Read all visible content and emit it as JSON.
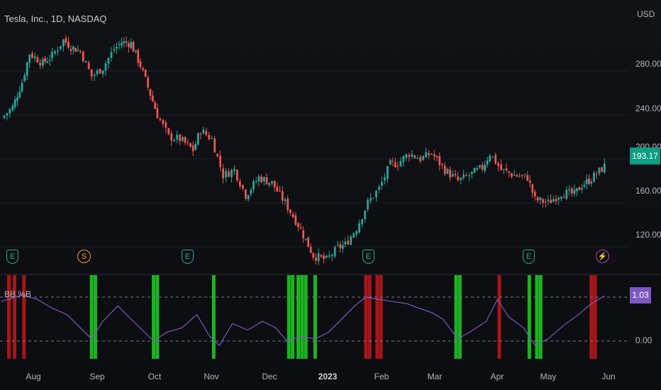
{
  "header": {
    "title": "Tesla, Inc., 1D, NASDAQ",
    "currency": "USD"
  },
  "price_axis": {
    "ticks": [
      "280.00",
      "240.00",
      "200.00",
      "160.00",
      "120.00"
    ],
    "last_price": "193.17"
  },
  "indicator": {
    "title": "BB %B",
    "last_value": "1.03",
    "ticks": [
      "0.00"
    ]
  },
  "time_axis": {
    "labels": [
      "Aug",
      "Sep",
      "Oct",
      "Nov",
      "Dec",
      "2023",
      "Feb",
      "Mar",
      "Apr",
      "May",
      "Jun"
    ]
  },
  "events": [
    {
      "type": "earnings",
      "glyph": "E"
    },
    {
      "type": "split",
      "glyph": "S"
    },
    {
      "type": "earnings",
      "glyph": "E"
    },
    {
      "type": "earnings",
      "glyph": "E"
    },
    {
      "type": "earnings",
      "glyph": "E"
    },
    {
      "type": "earnings",
      "glyph": "E"
    },
    {
      "type": "flash",
      "glyph": "⚡"
    }
  ],
  "colors": {
    "up": "#26a69a",
    "down": "#ef5350",
    "bb_line": "#7e57c2",
    "green_zone": "#1fd126",
    "red_zone": "#c4161c"
  },
  "chart_data": {
    "type": "candlestick",
    "title": "Tesla, Inc., 1D, NASDAQ",
    "x_range": [
      "2022-07",
      "2023-06"
    ],
    "y_ticks": [
      120,
      160,
      200,
      240,
      280
    ],
    "ylim": [
      95,
      320
    ],
    "close_series": [
      [
        "2022-07-14",
        237
      ],
      [
        "2022-07-20",
        247
      ],
      [
        "2022-07-25",
        270
      ],
      [
        "2022-07-29",
        296
      ],
      [
        "2022-08-05",
        287
      ],
      [
        "2022-08-10",
        294
      ],
      [
        "2022-08-16",
        308
      ],
      [
        "2022-08-20",
        302
      ],
      [
        "2022-08-25",
        298
      ],
      [
        "2022-08-31",
        275
      ],
      [
        "2022-09-06",
        283
      ],
      [
        "2022-09-12",
        300
      ],
      [
        "2022-09-16",
        306
      ],
      [
        "2022-09-21",
        305
      ],
      [
        "2022-09-26",
        285
      ],
      [
        "2022-09-30",
        265
      ],
      [
        "2022-10-05",
        240
      ],
      [
        "2022-10-11",
        220
      ],
      [
        "2022-10-17",
        218
      ],
      [
        "2022-10-24",
        208
      ],
      [
        "2022-10-28",
        226
      ],
      [
        "2022-11-03",
        218
      ],
      [
        "2022-11-09",
        185
      ],
      [
        "2022-11-15",
        190
      ],
      [
        "2022-11-21",
        167
      ],
      [
        "2022-11-28",
        183
      ],
      [
        "2022-12-05",
        178
      ],
      [
        "2022-12-12",
        160
      ],
      [
        "2022-12-19",
        140
      ],
      [
        "2022-12-27",
        112
      ],
      [
        "2023-01-03",
        108
      ],
      [
        "2023-01-09",
        119
      ],
      [
        "2023-01-13",
        122
      ],
      [
        "2023-01-19",
        137
      ],
      [
        "2023-01-25",
        160
      ],
      [
        "2023-01-31",
        173
      ],
      [
        "2023-02-06",
        195
      ],
      [
        "2023-02-10",
        196
      ],
      [
        "2023-02-16",
        205
      ],
      [
        "2023-02-22",
        200
      ],
      [
        "2023-02-28",
        205
      ],
      [
        "2023-03-07",
        190
      ],
      [
        "2023-03-14",
        180
      ],
      [
        "2023-03-20",
        185
      ],
      [
        "2023-03-27",
        192
      ],
      [
        "2023-03-31",
        205
      ],
      [
        "2023-04-06",
        190
      ],
      [
        "2023-04-13",
        185
      ],
      [
        "2023-04-20",
        183
      ],
      [
        "2023-04-24",
        163
      ],
      [
        "2023-05-01",
        160
      ],
      [
        "2023-05-08",
        169
      ],
      [
        "2023-05-15",
        168
      ],
      [
        "2023-05-19",
        176
      ],
      [
        "2023-05-24",
        182
      ],
      [
        "2023-05-31",
        193.17
      ]
    ],
    "bb_percent_b": {
      "type": "line",
      "series_name": "BB %B",
      "ylim": [
        -0.3,
        1.25
      ],
      "reference_lines": [
        0,
        1
      ],
      "points": [
        [
          "2022-07-14",
          0.9
        ],
        [
          "2022-07-25",
          1.05
        ],
        [
          "2022-08-02",
          0.95
        ],
        [
          "2022-08-10",
          0.75
        ],
        [
          "2022-08-18",
          0.6
        ],
        [
          "2022-08-25",
          0.3
        ],
        [
          "2022-08-31",
          0.05
        ],
        [
          "2022-09-06",
          0.45
        ],
        [
          "2022-09-14",
          0.8
        ],
        [
          "2022-09-21",
          0.5
        ],
        [
          "2022-09-27",
          0.25
        ],
        [
          "2022-10-03",
          0.0
        ],
        [
          "2022-10-10",
          0.2
        ],
        [
          "2022-10-18",
          0.3
        ],
        [
          "2022-10-26",
          0.6
        ],
        [
          "2022-11-02",
          0.1
        ],
        [
          "2022-11-07",
          -0.1
        ],
        [
          "2022-11-14",
          0.4
        ],
        [
          "2022-11-22",
          0.25
        ],
        [
          "2022-11-30",
          0.45
        ],
        [
          "2022-12-07",
          0.3
        ],
        [
          "2022-12-13",
          0.0
        ],
        [
          "2022-12-20",
          0.1
        ],
        [
          "2022-12-28",
          0.05
        ],
        [
          "2023-01-04",
          0.2
        ],
        [
          "2023-01-10",
          0.45
        ],
        [
          "2023-01-18",
          0.8
        ],
        [
          "2023-01-24",
          1.0
        ],
        [
          "2023-01-31",
          0.95
        ],
        [
          "2023-02-07",
          0.9
        ],
        [
          "2023-02-15",
          0.85
        ],
        [
          "2023-02-21",
          0.75
        ],
        [
          "2023-02-28",
          0.65
        ],
        [
          "2023-03-06",
          0.5
        ],
        [
          "2023-03-14",
          0.05
        ],
        [
          "2023-03-22",
          0.25
        ],
        [
          "2023-03-29",
          0.45
        ],
        [
          "2023-04-04",
          0.95
        ],
        [
          "2023-04-10",
          0.55
        ],
        [
          "2023-04-18",
          0.3
        ],
        [
          "2023-04-24",
          -0.1
        ],
        [
          "2023-05-01",
          0.05
        ],
        [
          "2023-05-09",
          0.35
        ],
        [
          "2023-05-17",
          0.6
        ],
        [
          "2023-05-24",
          0.85
        ],
        [
          "2023-05-31",
          1.03
        ]
      ],
      "green_zone_dates": [
        "2022-08-31",
        "2022-09-02",
        "2022-10-03",
        "2022-10-05",
        "2022-11-04",
        "2022-12-14",
        "2022-12-16",
        "2022-12-19",
        "2022-12-21",
        "2022-12-23",
        "2022-12-28",
        "2023-03-13",
        "2023-03-15",
        "2023-04-21",
        "2023-04-25",
        "2023-04-27"
      ],
      "red_zone_dates": [
        "2022-07-18",
        "2022-07-21",
        "2022-07-26",
        "2023-01-24",
        "2023-01-26",
        "2023-01-30",
        "2023-02-01",
        "2023-04-05",
        "2023-05-24",
        "2023-05-26"
      ]
    }
  }
}
